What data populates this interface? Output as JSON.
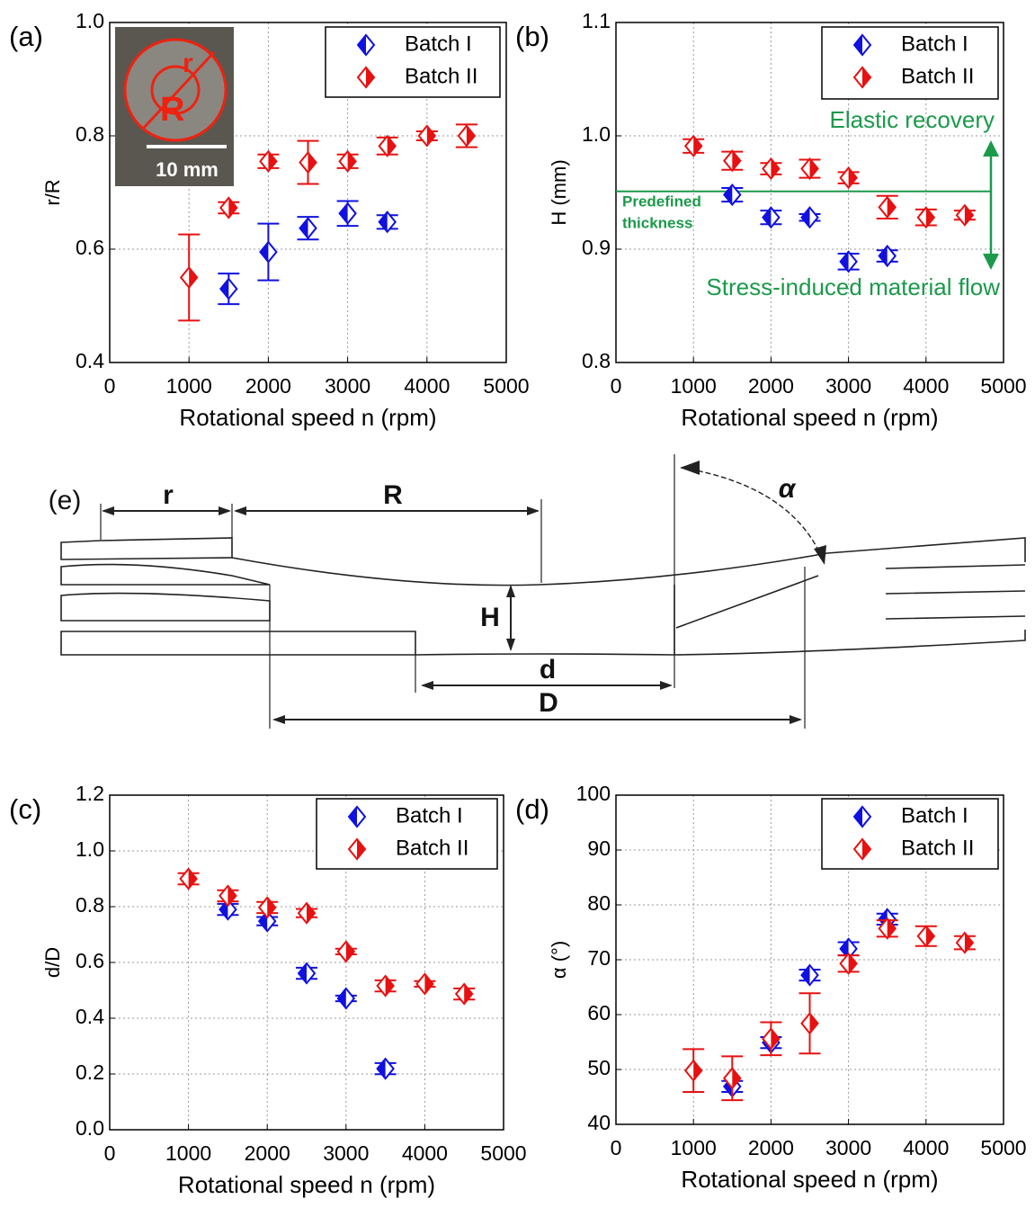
{
  "chart_data": [
    {
      "type": "scatter",
      "panel_label": "(a)",
      "x_label": "Rotational speed n (rpm)",
      "y_label": "r/R",
      "xlim": [
        0,
        5000
      ],
      "xticks": [
        0,
        1000,
        2000,
        3000,
        4000,
        5000
      ],
      "ylim": [
        0.4,
        1.0
      ],
      "yticks": [
        0.4,
        0.6,
        0.8,
        {
          "value": 1,
          "label": "1.0"
        }
      ],
      "grid": true,
      "legend": "upper right",
      "inset_labels": [
        "r",
        "R",
        "10 mm"
      ],
      "series": [
        {
          "name": "Batch I",
          "color": "#1010e0",
          "x": [
            1500,
            2000,
            2500,
            3000,
            3500
          ],
          "values": [
            0.53,
            0.595,
            0.637,
            0.663,
            0.648
          ],
          "errors": [
            0.027,
            0.05,
            0.02,
            0.022,
            0.012
          ]
        },
        {
          "name": "Batch II",
          "color": "#e81010",
          "x": [
            1000,
            1500,
            2000,
            2500,
            3000,
            3500,
            4000,
            4500
          ],
          "values": [
            0.55,
            0.673,
            0.755,
            0.753,
            0.755,
            0.782,
            0.8,
            0.8
          ],
          "errors": [
            0.076,
            0.01,
            0.012,
            0.038,
            0.012,
            0.015,
            0.008,
            0.02
          ]
        }
      ]
    },
    {
      "type": "scatter",
      "panel_label": "(b)",
      "x_label": "Rotational speed n (rpm)",
      "y_label": "H (mm)",
      "xlim": [
        0,
        5000
      ],
      "xticks": [
        0,
        1000,
        2000,
        3000,
        4000,
        5000
      ],
      "ylim": [
        0.8,
        1.1
      ],
      "yticks": [
        0.8,
        0.9,
        {
          "value": 1,
          "label": "1.0"
        },
        1.1
      ],
      "grid": true,
      "legend": "upper right",
      "reference_line": 0.951,
      "annotations": [
        "Elastic recovery",
        "Predefined",
        "thickness",
        "Stress-induced material flow"
      ],
      "series": [
        {
          "name": "Batch I",
          "color": "#1010e0",
          "x": [
            1500,
            2000,
            2500,
            3000,
            3500
          ],
          "values": [
            0.948,
            0.928,
            0.928,
            0.889,
            0.894
          ],
          "errors": [
            0.006,
            0.006,
            0.003,
            0.007,
            0.005
          ]
        },
        {
          "name": "Batch II",
          "color": "#e81010",
          "x": [
            1000,
            1500,
            2000,
            2500,
            3000,
            3500,
            4000,
            4500
          ],
          "values": [
            0.991,
            0.978,
            0.971,
            0.971,
            0.963,
            0.937,
            0.928,
            0.93
          ],
          "errors": [
            0.006,
            0.008,
            0.005,
            0.008,
            0.005,
            0.01,
            0.007,
            0.004
          ]
        }
      ]
    },
    {
      "type": "scatter",
      "panel_label": "(c)",
      "x_label": "Rotational speed n (rpm)",
      "y_label": "d/D",
      "xlim": [
        0,
        5000
      ],
      "xticks": [
        0,
        1000,
        2000,
        3000,
        4000,
        5000
      ],
      "ylim": [
        0,
        1.2
      ],
      "yticks": [
        {
          "value": 0,
          "label": "0.0"
        },
        0.2,
        0.4,
        0.6,
        0.8,
        {
          "value": 1,
          "label": "1.0"
        },
        1.2
      ],
      "grid": true,
      "legend": "upper right",
      "series": [
        {
          "name": "Batch I",
          "color": "#1010e0",
          "x": [
            1500,
            2000,
            2500,
            3000,
            3500
          ],
          "values": [
            0.79,
            0.748,
            0.561,
            0.471,
            0.219
          ],
          "errors": [
            0.02,
            0.015,
            0.02,
            0.01,
            0.02
          ]
        },
        {
          "name": "Batch II",
          "color": "#e81010",
          "x": [
            1000,
            1500,
            2000,
            2500,
            3000,
            3500,
            4000,
            4500
          ],
          "values": [
            0.9,
            0.839,
            0.797,
            0.777,
            0.639,
            0.516,
            0.523,
            0.487
          ],
          "errors": [
            0.02,
            0.02,
            0.02,
            0.015,
            0.01,
            0.02,
            0.01,
            0.02
          ]
        }
      ]
    },
    {
      "type": "scatter",
      "panel_label": "(d)",
      "x_label": "Rotational speed n (rpm)",
      "y_label": "α (°)",
      "xlim": [
        0,
        5000
      ],
      "xticks": [
        0,
        1000,
        2000,
        3000,
        4000,
        5000
      ],
      "ylim": [
        40,
        100
      ],
      "yticks": [
        40,
        50,
        60,
        70,
        80,
        90,
        100
      ],
      "grid": true,
      "legend": "upper right",
      "series": [
        {
          "name": "Batch I",
          "color": "#1010e0",
          "x": [
            1500,
            2000,
            2500,
            3000,
            3500
          ],
          "values": [
            46.9,
            54.9,
            67.2,
            72,
            77.4
          ],
          "errors": [
            1,
            1,
            1,
            1.2,
            1
          ]
        },
        {
          "name": "Batch II",
          "color": "#e81010",
          "x": [
            1000,
            1500,
            2000,
            2500,
            3000,
            3500,
            4000,
            4500
          ],
          "values": [
            49.8,
            48.4,
            55.6,
            58.4,
            69.3,
            75.7,
            74.3,
            73.1
          ],
          "errors": [
            3.9,
            4,
            3,
            5.5,
            1.5,
            1.5,
            1.8,
            1.2
          ]
        }
      ]
    }
  ],
  "diagram": {
    "panel_label": "(e)",
    "labels": [
      "r",
      "R",
      "H",
      "d",
      "D",
      "α"
    ]
  }
}
